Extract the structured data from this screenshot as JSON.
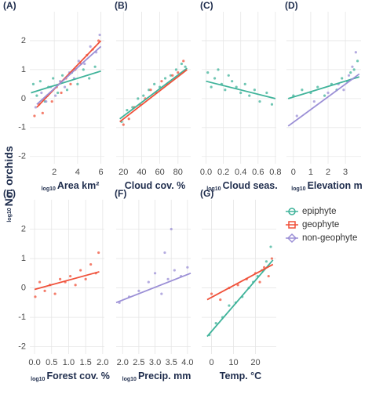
{
  "chart_data": [
    {
      "type": "scatter",
      "label": "(A)",
      "ylabel_prefix": "log10",
      "ylabel": "No. orchids",
      "xlabel_prefix": "log10",
      "xlabel": "Area km²",
      "grid": true,
      "xlim": [
        -0.1,
        6.3
      ],
      "xticks": [
        2,
        4,
        6
      ],
      "ylim": [
        -2.25,
        3.0
      ],
      "yticks": [
        -2,
        -1,
        0,
        1,
        2
      ],
      "series": [
        {
          "name": "epiphyte",
          "color": "#3fb39a",
          "x": [
            0.2,
            0.5,
            0.8,
            1.2,
            1.5,
            1.9,
            2.3,
            2.7,
            3.1,
            3.5,
            4,
            4.5,
            5,
            5.5
          ],
          "y": [
            0.5,
            0.1,
            0.6,
            -0.1,
            0.4,
            0.7,
            0.2,
            0.8,
            0.3,
            0.9,
            0.5,
            1.0,
            0.7,
            1.1
          ],
          "fit": {
            "x": [
              0,
              6
            ],
            "y": [
              0.2,
              0.95
            ]
          }
        },
        {
          "name": "geophyte",
          "color": "#f0513a",
          "x": [
            0.3,
            0.7,
            1,
            1.4,
            1.8,
            2.2,
            2.6,
            3,
            3.4,
            3.8,
            4.3,
            4.8,
            5.3,
            5.8
          ],
          "y": [
            -0.6,
            -0.2,
            -0.5,
            0.1,
            -0.1,
            0.4,
            0.2,
            0.7,
            0.5,
            1.0,
            1.2,
            1.5,
            1.7,
            2.0
          ],
          "fit": {
            "x": [
              0.5,
              6
            ],
            "y": [
              -0.3,
              2.0
            ]
          }
        },
        {
          "name": "non-geophyte",
          "color": "#9b8fd6",
          "x": [
            0.4,
            0.9,
            1.3,
            1.7,
            2.1,
            2.5,
            2.9,
            3.3,
            3.7,
            4.1,
            4.6,
            5.1,
            5.6,
            5.9
          ],
          "y": [
            -0.3,
            0.2,
            -0.1,
            0.4,
            0.1,
            0.6,
            0.4,
            0.9,
            0.7,
            1.3,
            1.2,
            1.8,
            1.6,
            2.2
          ],
          "fit": {
            "x": [
              0.5,
              6
            ],
            "y": [
              -0.2,
              1.8
            ]
          }
        }
      ]
    },
    {
      "type": "scatter",
      "label": "(B)",
      "xlabel": "Cloud cov. %",
      "grid": true,
      "xlim": [
        12,
        94
      ],
      "xticks": [
        20,
        40,
        60,
        80
      ],
      "ylim": [
        -2.25,
        3.0
      ],
      "yticks": [
        -2,
        -1,
        0,
        1,
        2
      ],
      "series": [
        {
          "name": "epiphyte",
          "color": "#3fb39a",
          "x": [
            18,
            24,
            30,
            36,
            42,
            48,
            54,
            60,
            66,
            72,
            78,
            84,
            88
          ],
          "y": [
            -0.8,
            -0.4,
            -0.3,
            0.0,
            0.1,
            0.3,
            0.5,
            0.4,
            0.7,
            0.8,
            1.0,
            1.2,
            1.1
          ],
          "fit": {
            "x": [
              16,
              90
            ],
            "y": [
              -0.7,
              1.05
            ]
          }
        },
        {
          "name": "geophyte",
          "color": "#f0513a",
          "x": [
            20,
            26,
            32,
            38,
            44,
            50,
            56,
            62,
            68,
            74,
            80,
            86
          ],
          "y": [
            -0.9,
            -0.7,
            -0.3,
            -0.2,
            0.0,
            0.3,
            0.2,
            0.6,
            0.5,
            0.8,
            0.9,
            1.3
          ],
          "fit": {
            "x": [
              16,
              90
            ],
            "y": [
              -0.8,
              1.0
            ]
          }
        }
      ]
    },
    {
      "type": "scatter",
      "label": "(C)",
      "xlabel_prefix": "log10",
      "xlabel": "Cloud seas.",
      "grid": true,
      "xlim": [
        -0.05,
        0.81
      ],
      "xticks": [
        {
          "value": 0,
          "label": "0.0"
        },
        {
          "value": 0.2,
          "label": "0.2"
        },
        {
          "value": 0.4,
          "label": "0.4"
        },
        {
          "value": 0.6,
          "label": "0.6"
        },
        {
          "value": 0.8,
          "label": "0.8"
        }
      ],
      "ylim": [
        -2.25,
        3.0
      ],
      "yticks": [
        -2,
        -1,
        0,
        1,
        2
      ],
      "series": [
        {
          "name": "epiphyte",
          "color": "#3fb39a",
          "x": [
            0.02,
            0.06,
            0.1,
            0.14,
            0.18,
            0.22,
            0.26,
            0.3,
            0.35,
            0.4,
            0.45,
            0.5,
            0.56,
            0.62,
            0.7,
            0.76
          ],
          "y": [
            0.9,
            0.4,
            0.7,
            1.0,
            0.5,
            0.3,
            0.8,
            0.6,
            0.4,
            0.2,
            0.5,
            0.1,
            0.3,
            -0.1,
            0.2,
            -0.2
          ],
          "fit": {
            "x": [
              0,
              0.8
            ],
            "y": [
              0.6,
              0.0
            ]
          }
        }
      ]
    },
    {
      "type": "scatter",
      "label": "(D)",
      "xlabel_prefix": "log10",
      "xlabel": "Elevation m",
      "grid": true,
      "xlim": [
        -0.4,
        3.9
      ],
      "xticks": [
        0,
        1,
        2,
        3
      ],
      "ylim": [
        -2.25,
        3.0
      ],
      "yticks": [
        -2,
        -1,
        0,
        1,
        2
      ],
      "series": [
        {
          "name": "epiphyte",
          "color": "#3fb39a",
          "x": [
            0,
            0.5,
            1,
            1.4,
            1.8,
            2.2,
            2.5,
            2.8,
            3.1,
            3.3,
            3.5,
            3.7
          ],
          "y": [
            0.1,
            0.3,
            0.2,
            0.4,
            0.1,
            0.5,
            0.3,
            0.7,
            0.6,
            0.9,
            1.0,
            1.3
          ],
          "fit": {
            "x": [
              -0.3,
              3.8
            ],
            "y": [
              0.0,
              0.75
            ]
          }
        },
        {
          "name": "non-geophyte",
          "color": "#9b8fd6",
          "x": [
            0.2,
            1.2,
            2,
            2.6,
            2.9,
            3.2,
            3.4,
            3.6
          ],
          "y": [
            -0.6,
            -0.1,
            0.2,
            0.5,
            0.3,
            0.8,
            1.1,
            1.6
          ],
          "fit": {
            "x": [
              -0.3,
              3.8
            ],
            "y": [
              -0.95,
              0.85
            ]
          }
        }
      ]
    },
    {
      "type": "scatter",
      "label": "(E)",
      "xlabel_prefix": "log10",
      "xlabel": "Forest cov. %",
      "grid": true,
      "xlim": [
        -0.14,
        2.05
      ],
      "xticks": [
        {
          "value": 0,
          "label": "0.0"
        },
        {
          "value": 0.5,
          "label": "0.5"
        },
        {
          "value": 1,
          "label": "1.0"
        },
        {
          "value": 1.5,
          "label": "1.5"
        },
        {
          "value": 2,
          "label": "2.0"
        }
      ],
      "ylim": [
        -2.25,
        3.0
      ],
      "yticks": [
        -2,
        -1,
        0,
        1,
        2
      ],
      "series": [
        {
          "name": "geophyte",
          "color": "#f0513a",
          "x": [
            0.02,
            0.15,
            0.3,
            0.45,
            0.6,
            0.75,
            0.9,
            1.05,
            1.2,
            1.35,
            1.5,
            1.65,
            1.8,
            1.88
          ],
          "y": [
            -0.3,
            0.2,
            -0.1,
            0.1,
            -0.2,
            0.3,
            0.2,
            0.4,
            0.1,
            0.6,
            0.3,
            0.8,
            0.5,
            1.2
          ],
          "fit": {
            "x": [
              0,
              1.9
            ],
            "y": [
              -0.05,
              0.55
            ]
          }
        }
      ]
    },
    {
      "type": "scatter",
      "label": "(F)",
      "xlabel_prefix": "log10",
      "xlabel": "Precip. mm",
      "grid": true,
      "xlim": [
        1.8,
        4.1
      ],
      "xticks": [
        {
          "value": 2,
          "label": "2.0"
        },
        {
          "value": 2.5,
          "label": "2.5"
        },
        {
          "value": 3,
          "label": "3.0"
        },
        {
          "value": 3.5,
          "label": "3.5"
        },
        {
          "value": 4,
          "label": "4.0"
        }
      ],
      "ylim": [
        -2.25,
        3.0
      ],
      "yticks": [
        -2,
        -1,
        0,
        1,
        2
      ],
      "series": [
        {
          "name": "non-geophyte",
          "color": "#9b8fd6",
          "x": [
            1.9,
            2.2,
            2.5,
            2.8,
            3.0,
            3.2,
            3.3,
            3.4,
            3.5,
            3.6,
            3.8,
            4.0
          ],
          "y": [
            -0.5,
            -0.3,
            -0.1,
            0.2,
            0.5,
            -0.2,
            1.2,
            0.3,
            2.0,
            0.6,
            0.4,
            0.7
          ],
          "fit": {
            "x": [
              1.8,
              4.1
            ],
            "y": [
              -0.5,
              0.5
            ]
          }
        }
      ]
    },
    {
      "type": "scatter",
      "label": "(G)",
      "xlabel": "Temp. °C",
      "grid": true,
      "xlim": [
        -4.5,
        29.5
      ],
      "xticks": [
        0,
        10,
        20
      ],
      "ylim": [
        -2.25,
        3.0
      ],
      "yticks": [
        -2,
        -1,
        0,
        1,
        2
      ],
      "series": [
        {
          "name": "epiphyte",
          "color": "#3fb39a",
          "x": [
            -1,
            2,
            5,
            8,
            11,
            14,
            17,
            19,
            21,
            23,
            25,
            27
          ],
          "y": [
            -1.6,
            -1.2,
            -1.0,
            -0.6,
            -0.5,
            -0.3,
            0.0,
            0.2,
            0.4,
            0.6,
            0.9,
            1.4
          ],
          "fit": {
            "x": [
              -2,
              28
            ],
            "y": [
              -1.65,
              0.95
            ]
          }
        },
        {
          "name": "geophyte",
          "color": "#f0513a",
          "x": [
            0,
            4,
            8,
            12,
            16,
            20,
            22,
            24,
            26,
            27.5
          ],
          "y": [
            -0.2,
            -0.4,
            0.0,
            0.1,
            0.3,
            0.5,
            0.2,
            0.7,
            0.4,
            1.0
          ],
          "fit": {
            "x": [
              -2,
              28
            ],
            "y": [
              -0.4,
              0.8
            ]
          }
        }
      ]
    }
  ]
}
